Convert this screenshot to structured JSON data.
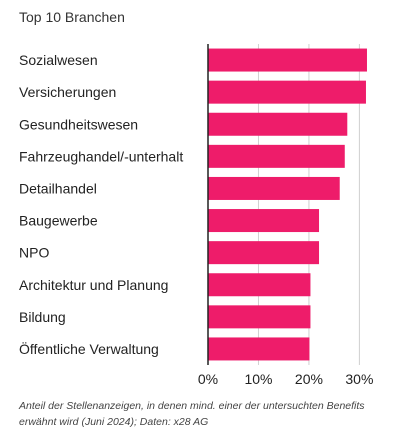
{
  "title": "Top 10 Branchen",
  "caption": "Anteil der Stellenanzeigen, in denen mind. einer der untersuchten Benefits erwähnt wird (Juni 2024); Daten: x28 AG",
  "colors": {
    "bar": "#ee1c6a",
    "grid": "#d0d0d0",
    "axis": "#222222"
  },
  "chart_data": {
    "type": "bar",
    "orientation": "horizontal",
    "categories": [
      "Sozialwesen",
      "Versicherungen",
      "Gesundheitswesen",
      "Fahrzeughandel/-unterhalt",
      "Detailhandel",
      "Baugewerbe",
      "NPO",
      "Architektur und Planung",
      "Bildung",
      "Öffentliche Verwaltung"
    ],
    "values": [
      31.5,
      31.3,
      27.6,
      27.1,
      26.1,
      22.0,
      22.0,
      20.3,
      20.3,
      20.1
    ],
    "xticks": [
      "0%",
      "10%",
      "20%",
      "30%"
    ],
    "xtick_values": [
      0,
      10,
      20,
      30
    ],
    "xlim": [
      0,
      32
    ],
    "unit": "%",
    "grid": true
  }
}
